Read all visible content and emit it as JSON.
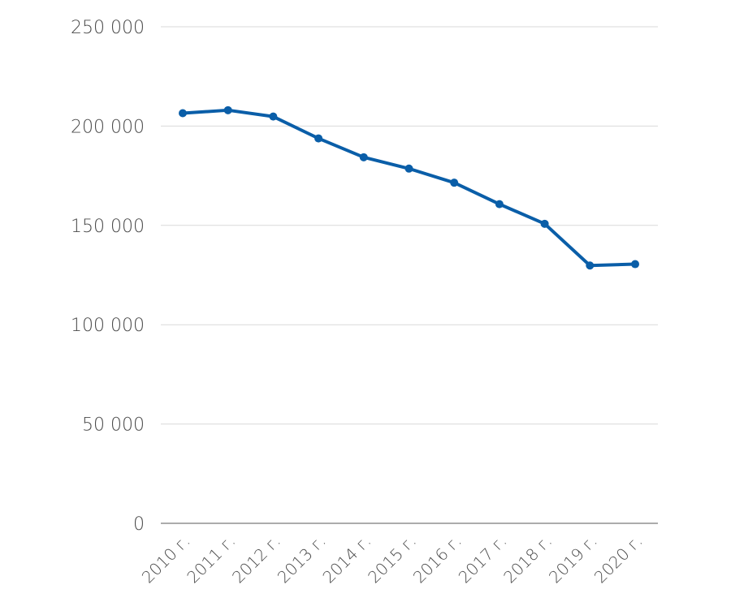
{
  "chart_data": {
    "type": "line",
    "title": "",
    "xlabel": "",
    "ylabel": "",
    "categories": [
      "2010 г.",
      "2011 г.",
      "2012 г.",
      "2013 г.",
      "2014 г.",
      "2015 г.",
      "2016 г.",
      "2017 г.",
      "2018 г.",
      "2019 г.",
      "2020 г."
    ],
    "series": [
      {
        "values": [
          206500,
          208000,
          204800,
          193800,
          184300,
          178600,
          171500,
          160700,
          150800,
          129800,
          130500
        ],
        "color": "#0a5ea8"
      }
    ],
    "ylim": [
      0,
      250000
    ],
    "yticks": [
      0,
      50000,
      100000,
      150000,
      200000,
      250000
    ],
    "ytick_labels": [
      "0",
      "50 000",
      "100 000",
      "150 000",
      "200 000",
      "250 000"
    ],
    "grid": true,
    "legend": "none"
  }
}
